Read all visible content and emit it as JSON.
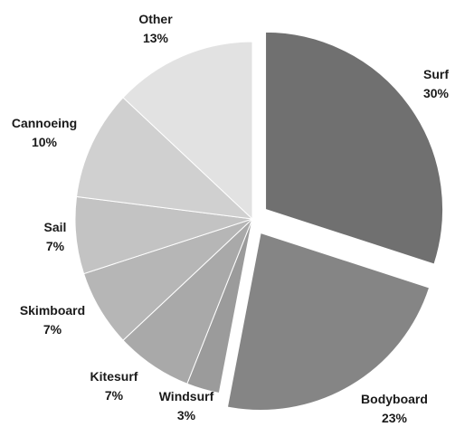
{
  "chart_data": {
    "type": "pie",
    "title": "",
    "legend": "none",
    "label_position": "outside",
    "start_angle_deg": 0,
    "direction": "clockwise",
    "exploded": [
      "Surf",
      "Bodyboard"
    ],
    "slices": [
      {
        "name": "Surf",
        "value": 30,
        "label": "30%",
        "color": "#707070"
      },
      {
        "name": "Bodyboard",
        "value": 23,
        "label": "23%",
        "color": "#858585"
      },
      {
        "name": "Windsurf",
        "value": 3,
        "label": "3%",
        "color": "#9b9b9b"
      },
      {
        "name": "Kitesurf",
        "value": 7,
        "label": "7%",
        "color": "#a9a9a9"
      },
      {
        "name": "Skimboard",
        "value": 7,
        "label": "7%",
        "color": "#b6b6b6"
      },
      {
        "name": "Sail",
        "value": 7,
        "label": "7%",
        "color": "#c3c3c3"
      },
      {
        "name": "Cannoeing",
        "value": 10,
        "label": "10%",
        "color": "#d0d0d0"
      },
      {
        "name": "Other",
        "value": 13,
        "label": "13%",
        "color": "#e2e2e2"
      }
    ]
  }
}
